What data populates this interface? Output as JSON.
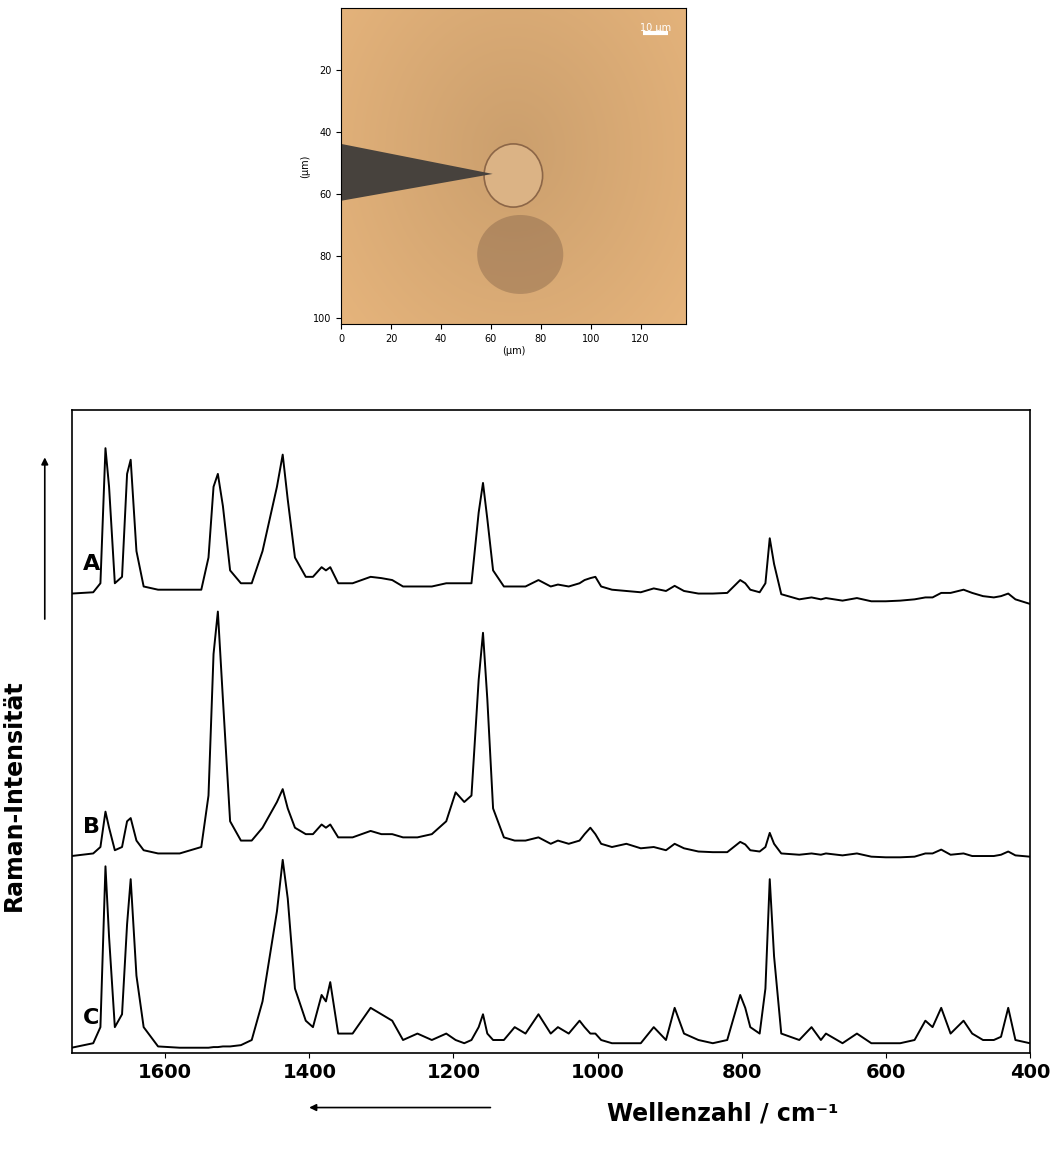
{
  "chart_data": [
    {
      "type": "image",
      "xlabel": "(µm)",
      "ylabel": "(µm)",
      "xlim": [
        0,
        138
      ],
      "ylim": [
        102,
        0
      ],
      "xticks": [
        0,
        20,
        40,
        60,
        80,
        100,
        120
      ],
      "yticks": [
        20,
        40,
        60,
        80,
        100
      ],
      "scalebar": {
        "length": 10,
        "label": "10 µm"
      }
    },
    {
      "type": "line",
      "xlabel": "Wellenzahl / cm⁻¹",
      "ylabel": "Raman-Intensität",
      "xlim": [
        1730,
        400
      ],
      "ylim": [
        0,
        100
      ],
      "xticks": [
        1600,
        1400,
        1200,
        1000,
        800,
        600,
        400
      ],
      "yticks": [],
      "tick_labels": "x",
      "x": [
        1730,
        1700,
        1690,
        1683,
        1678,
        1670,
        1660,
        1653,
        1648,
        1640,
        1630,
        1610,
        1580,
        1550,
        1540,
        1533,
        1527,
        1520,
        1510,
        1495,
        1480,
        1465,
        1455,
        1445,
        1437,
        1430,
        1420,
        1405,
        1395,
        1383,
        1377,
        1371,
        1360,
        1340,
        1315,
        1300,
        1285,
        1270,
        1250,
        1230,
        1210,
        1197,
        1185,
        1175,
        1165,
        1159,
        1153,
        1145,
        1130,
        1115,
        1100,
        1082,
        1065,
        1055,
        1040,
        1025,
        1018,
        1010,
        1003,
        995,
        980,
        960,
        940,
        922,
        905,
        893,
        880,
        860,
        840,
        820,
        802,
        795,
        788,
        775,
        767,
        761,
        755,
        745,
        720,
        703,
        690,
        683,
        660,
        640,
        620,
        600,
        580,
        560,
        545,
        535,
        523,
        510,
        492,
        480,
        465,
        450,
        440,
        430,
        420,
        400
      ],
      "series": [
        {
          "name": "A",
          "color": "#000000",
          "line_style": "solid",
          "values": [
            71.4,
            71.6,
            73,
            94,
            88,
            73,
            74,
            90,
            92.2,
            78,
            72.5,
            72,
            72,
            72,
            77,
            88,
            90,
            85,
            75,
            73,
            73,
            78,
            83,
            88,
            93,
            86,
            77,
            74,
            74,
            75.5,
            75,
            75.5,
            73,
            73,
            74,
            73.8,
            73.5,
            72.5,
            72.5,
            72.5,
            73,
            73,
            73,
            73,
            84,
            88.6,
            83,
            75,
            72.5,
            72.5,
            72.5,
            73.5,
            72.5,
            72.8,
            72.5,
            73,
            73.5,
            73.8,
            74,
            72.5,
            72,
            71.8,
            71.6,
            72.2,
            71.8,
            72.6,
            71.8,
            71.4,
            71.4,
            71.5,
            73.5,
            73,
            72,
            71.6,
            73,
            80,
            76,
            71.3,
            70.5,
            70.8,
            70.5,
            70.7,
            70.3,
            70.7,
            70.2,
            70.2,
            70.3,
            70.5,
            70.8,
            70.8,
            71.5,
            71.5,
            72,
            71.5,
            71,
            70.8,
            71,
            71.4,
            70.5,
            69.8
          ]
        },
        {
          "name": "B",
          "color": "#000000",
          "line_style": "solid",
          "values": [
            30.6,
            31,
            32,
            37.5,
            35,
            31.5,
            32,
            36,
            36.5,
            33,
            31.5,
            31,
            31,
            32,
            40,
            62,
            68.6,
            55,
            36,
            33,
            33,
            35,
            37,
            39,
            41,
            38,
            35,
            34,
            34,
            35.5,
            35,
            35.5,
            33.5,
            33.5,
            34.5,
            34,
            34,
            33.5,
            33.5,
            34,
            36,
            40.5,
            39,
            40,
            58,
            65.3,
            55,
            38,
            33.5,
            33,
            33,
            33.5,
            32.5,
            33,
            32.5,
            33,
            34,
            35,
            34,
            32.5,
            32,
            32.5,
            31.8,
            32,
            31.5,
            32.5,
            31.8,
            31.3,
            31.2,
            31.2,
            32.8,
            32.4,
            31.5,
            31.3,
            32,
            34.2,
            32.5,
            31,
            30.8,
            31,
            30.8,
            31,
            30.7,
            31,
            30.5,
            30.4,
            30.4,
            30.5,
            31,
            31,
            31.6,
            30.8,
            31,
            30.6,
            30.6,
            30.6,
            30.8,
            31.3,
            30.7,
            30.5
          ]
        },
        {
          "name": "C",
          "color": "#000000",
          "line_style": "solid",
          "values": [
            0.8,
            1.5,
            4,
            29,
            18,
            4,
            6,
            20,
            27,
            12,
            4,
            1,
            0.8,
            0.8,
            0.8,
            0.9,
            0.9,
            1,
            1,
            1.2,
            2,
            8,
            15,
            22,
            30,
            24,
            10,
            5,
            4,
            9,
            8,
            11,
            3,
            3,
            7,
            6,
            5,
            2,
            3,
            2,
            3,
            2,
            1.5,
            2,
            4,
            6,
            3,
            2,
            2,
            4,
            3,
            6,
            3,
            4,
            3,
            5,
            4,
            3,
            3,
            2,
            1.5,
            1.5,
            1.5,
            4,
            2,
            7,
            3,
            2,
            1.5,
            2,
            9,
            7,
            4,
            3,
            10,
            27,
            15,
            3,
            2,
            4,
            2,
            3,
            1.5,
            3,
            1.5,
            1.5,
            1.5,
            2,
            5,
            4,
            7,
            3,
            5,
            3,
            2,
            2,
            2.5,
            7,
            2,
            1.5
          ]
        }
      ]
    }
  ]
}
